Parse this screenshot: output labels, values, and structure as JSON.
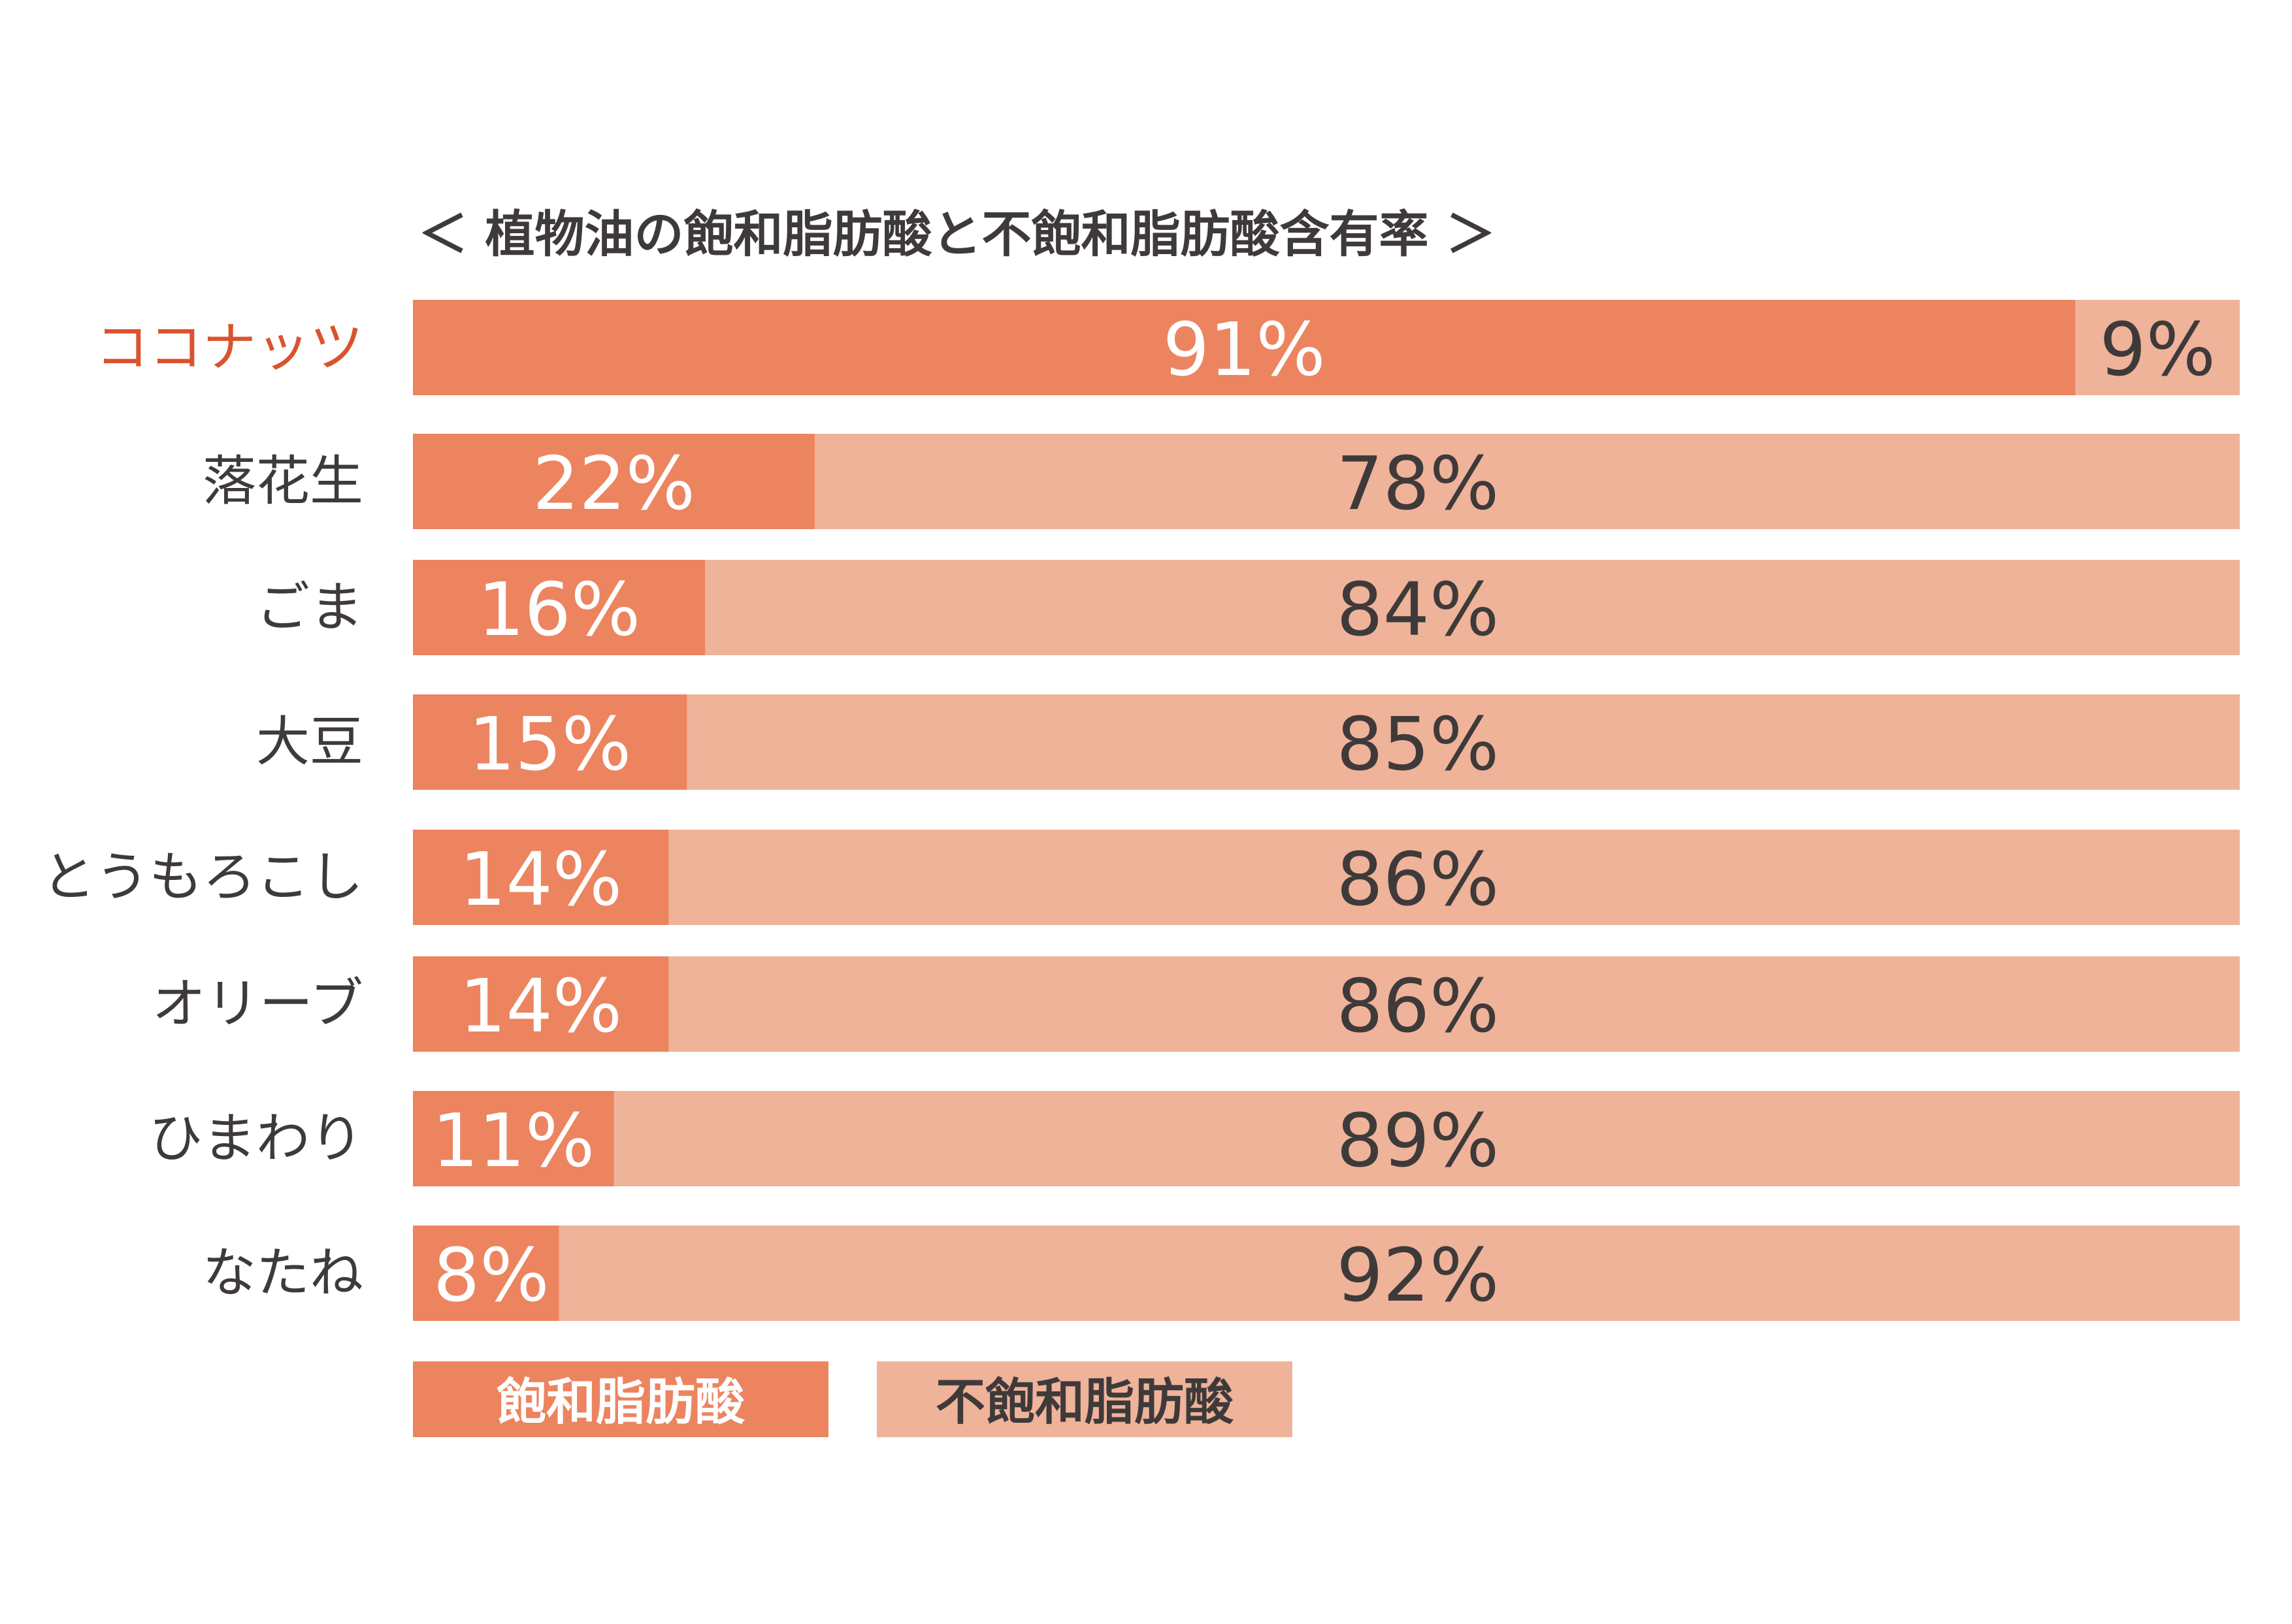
{
  "chart_data": {
    "type": "bar",
    "stacked": true,
    "orientation": "horizontal",
    "title": "＜ 植物油の飽和脂肪酸と不飽和脂肪酸含有率 ＞",
    "categories": [
      "ココナッツ",
      "落花生",
      "ごま",
      "大豆",
      "とうもろこし",
      "オリーブ",
      "ひまわり",
      "なたね"
    ],
    "highlight_category": "ココナッツ",
    "unit": "%",
    "xlim": [
      0,
      100
    ],
    "grid": false,
    "legend_position": "bottom-left",
    "series": [
      {
        "name": "飽和脂肪酸",
        "values": [
          91,
          22,
          16,
          15,
          14,
          14,
          11,
          8
        ],
        "color": "#ec8460"
      },
      {
        "name": "不飽和脂肪酸",
        "values": [
          9,
          78,
          84,
          85,
          86,
          86,
          89,
          92
        ],
        "color": "#efb39a"
      }
    ]
  },
  "colors": {
    "highlight_label": "#d9532f",
    "label_text": "#3f3a3a",
    "value_on_dark": "#ffffff",
    "value_on_light": "#3f3a3a"
  }
}
